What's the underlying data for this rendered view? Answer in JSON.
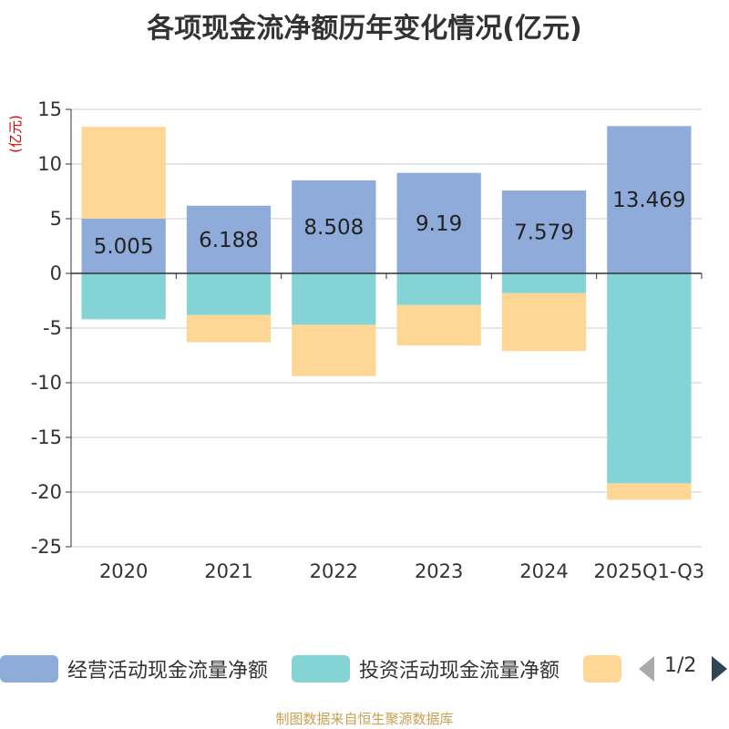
{
  "chart_data": {
    "type": "bar",
    "stacked": true,
    "title": "各项现金流净额历年变化情况(亿元)",
    "ylabel": "(亿元)",
    "xlabel": "",
    "ylim": [
      -25,
      15
    ],
    "yticks": [
      15,
      10,
      5,
      0,
      -5,
      -10,
      -15,
      -20,
      -25
    ],
    "categories": [
      "2020",
      "2021",
      "2022",
      "2023",
      "2024",
      "2025Q1-Q3"
    ],
    "series": [
      {
        "name": "经营活动现金流量净额",
        "color": "#8fabd9",
        "values": [
          5.005,
          6.188,
          8.508,
          9.19,
          7.579,
          13.469
        ],
        "show_labels": true
      },
      {
        "name": "投资活动现金流量净额",
        "color": "#84d4d6",
        "values": [
          -4.2,
          -3.8,
          -4.7,
          -2.9,
          -1.8,
          -19.2
        ],
        "show_labels": false
      },
      {
        "name": "",
        "color": "#fed797",
        "values": [
          8.4,
          -2.5,
          -4.7,
          -3.7,
          -5.3,
          -1.5
        ],
        "show_labels": false
      }
    ],
    "legend_position": "bottom",
    "grid": true
  },
  "legend": {
    "page_indicator": "1/2"
  },
  "footer": {
    "source": "制图数据来自恒生聚源数据库"
  }
}
